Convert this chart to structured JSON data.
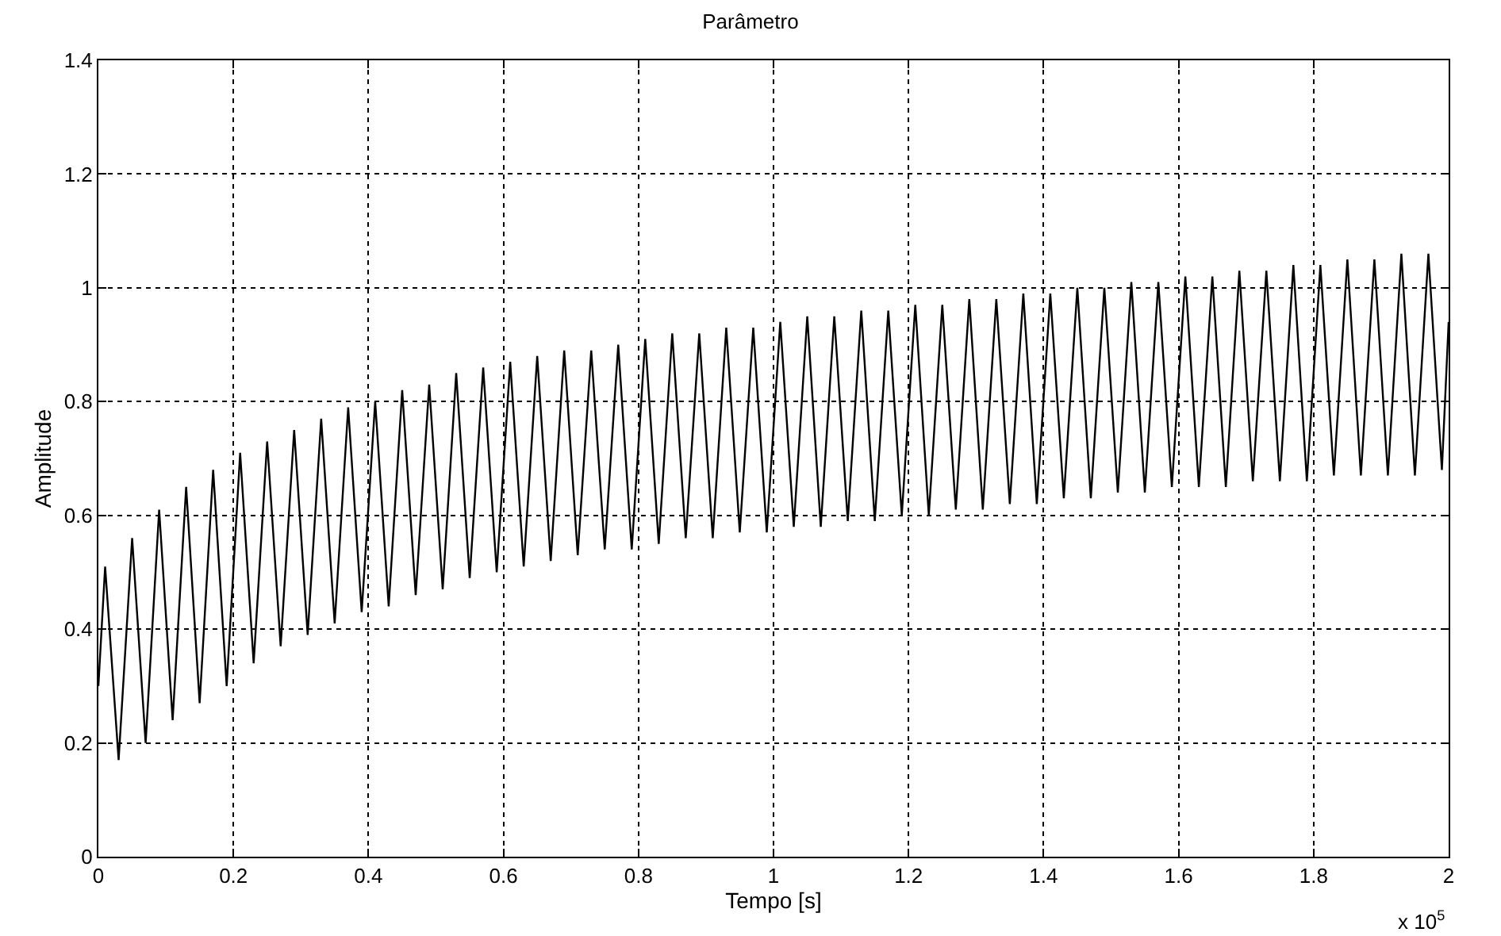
{
  "chart_data": {
    "type": "line",
    "title": "Parâmetro",
    "xlabel": "Tempo [s]",
    "ylabel": "Amplitude",
    "annotations": [
      "x 10$^{5}$"
    ],
    "x": [
      0,
      0.01,
      0.03,
      0.05,
      0.07,
      0.09,
      0.11,
      0.13,
      0.15,
      0.17,
      0.19,
      0.21,
      0.23,
      0.25,
      0.27,
      0.29,
      0.31,
      0.33,
      0.35,
      0.37,
      0.39,
      0.41,
      0.43,
      0.45,
      0.47,
      0.49,
      0.51,
      0.53,
      0.55,
      0.57,
      0.59,
      0.61,
      0.63,
      0.65,
      0.67,
      0.69,
      0.71,
      0.73,
      0.75,
      0.77,
      0.79,
      0.81,
      0.83,
      0.85,
      0.87,
      0.89,
      0.91,
      0.93,
      0.95,
      0.97,
      0.99,
      1.01,
      1.03,
      1.05,
      1.07,
      1.09,
      1.11,
      1.13,
      1.15,
      1.17,
      1.19,
      1.21,
      1.23,
      1.25,
      1.27,
      1.29,
      1.31,
      1.33,
      1.35,
      1.37,
      1.39,
      1.41,
      1.43,
      1.45,
      1.47,
      1.49,
      1.51,
      1.53,
      1.55,
      1.57,
      1.59,
      1.61,
      1.63,
      1.65,
      1.67,
      1.69,
      1.71,
      1.73,
      1.75,
      1.77,
      1.79,
      1.81,
      1.83,
      1.85,
      1.87,
      1.89,
      1.91,
      1.93,
      1.95,
      1.97,
      1.99,
      2
    ],
    "series": [
      {
        "color": "#000000",
        "values": [
          0.3,
          0.51,
          0.17,
          0.56,
          0.2,
          0.61,
          0.24,
          0.65,
          0.27,
          0.68,
          0.3,
          0.71,
          0.34,
          0.73,
          0.37,
          0.75,
          0.39,
          0.77,
          0.41,
          0.79,
          0.43,
          0.8,
          0.44,
          0.82,
          0.46,
          0.83,
          0.47,
          0.85,
          0.49,
          0.86,
          0.5,
          0.87,
          0.51,
          0.88,
          0.52,
          0.89,
          0.53,
          0.89,
          0.54,
          0.9,
          0.54,
          0.91,
          0.55,
          0.92,
          0.56,
          0.92,
          0.56,
          0.93,
          0.57,
          0.93,
          0.57,
          0.94,
          0.58,
          0.95,
          0.58,
          0.95,
          0.59,
          0.96,
          0.59,
          0.96,
          0.6,
          0.97,
          0.6,
          0.97,
          0.61,
          0.98,
          0.61,
          0.98,
          0.62,
          0.99,
          0.62,
          0.99,
          0.63,
          1.0,
          0.63,
          1.0,
          0.64,
          1.01,
          0.64,
          1.01,
          0.65,
          1.02,
          0.65,
          1.02,
          0.65,
          1.03,
          0.66,
          1.03,
          0.66,
          1.04,
          0.66,
          1.04,
          0.67,
          1.05,
          0.67,
          1.05,
          0.67,
          1.06,
          0.67,
          1.06,
          0.68,
          0.94
        ]
      }
    ],
    "xlim": [
      0,
      2
    ],
    "xticks": [
      0,
      0.2,
      0.4,
      0.6,
      0.8,
      1,
      1.2,
      1.4,
      1.6,
      1.8,
      2
    ],
    "ylim": [
      0,
      1.4
    ],
    "yticks": [
      0,
      0.2,
      0.4,
      0.6,
      0.8,
      1,
      1.2,
      1.4
    ],
    "grid": true,
    "marker": "none",
    "line_style": "solid"
  }
}
